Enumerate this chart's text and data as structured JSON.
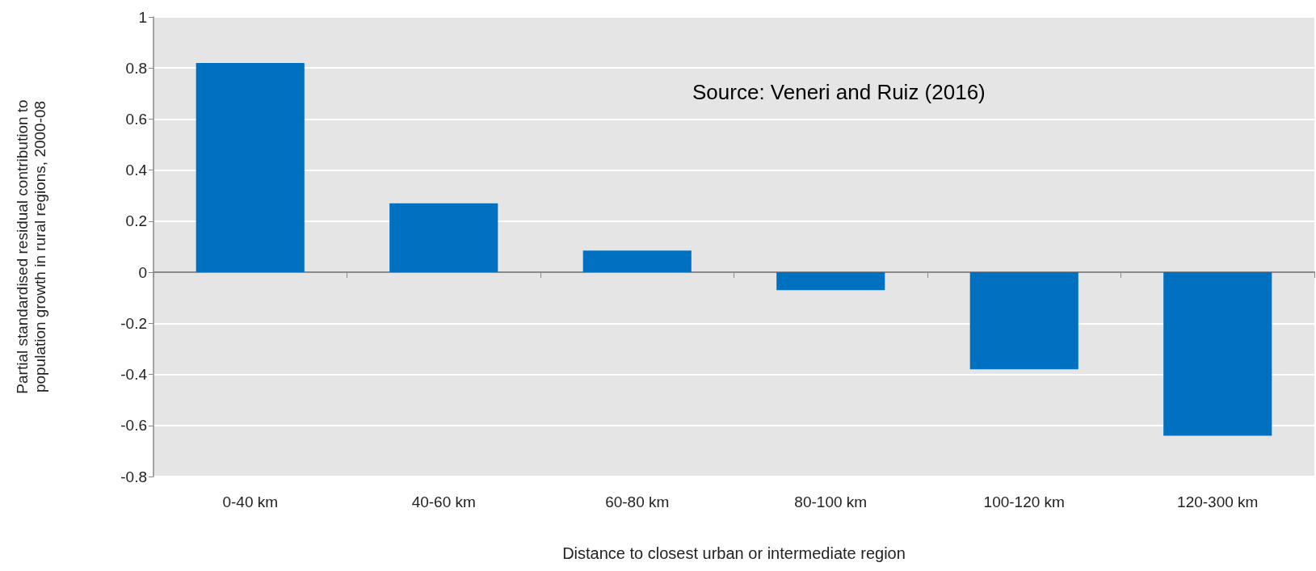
{
  "chart_data": {
    "type": "bar",
    "categories": [
      "0-40 km",
      "40-60 km",
      "60-80 km",
      "80-100 km",
      "100-120 km",
      "120-300 km"
    ],
    "values": [
      0.82,
      0.27,
      0.085,
      -0.07,
      -0.38,
      -0.64
    ],
    "color": "#0070c0",
    "xlabel": "Distance to closest urban or intermediate region",
    "ylabel": "Partial standardised residual contribution to\npopulation growth in rural regions, 2000-08",
    "annotations": [
      "Source: Veneri and Ruiz (2016)"
    ],
    "ylim": [
      -0.8,
      1
    ],
    "yticks": [
      -0.8,
      -0.6,
      -0.4,
      -0.2,
      0,
      0.2,
      0.4,
      0.6,
      0.8,
      1
    ],
    "grid": "y"
  }
}
